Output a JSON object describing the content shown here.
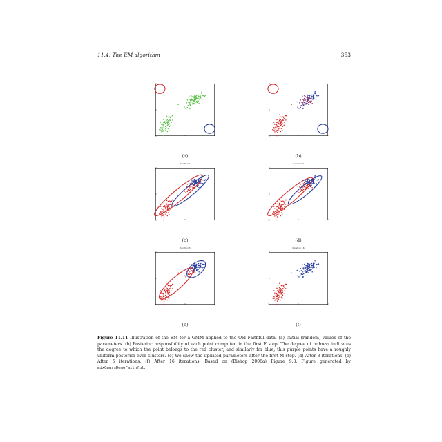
{
  "header": {
    "section": "11.4.   The EM algorithm",
    "page_number": "353"
  },
  "figure": {
    "caption_label": "Figure 11.11",
    "caption_text": "  Illustration of the EM for a GMM applied to the Old Faithful data. (a) Initial (random) values of the parameters. (b) Posterior responsibility of each point computed in the first E step. The degree of redness indicates the degree to which the point belongs to the red cluster, and similarly for blue; this purple points have a roughly uniform posterior over clusters. (c) We show the updated parameters after the first M step. (d) After 3 iterations. (e) After 5 iterations. (f) After 16 iterations. Based on (Bishop 2006a) Figure 9.8. Figure generated by ",
    "caption_code": "mixGaussDemoFaithful",
    "caption_end": ".",
    "panels": [
      {
        "label": "(a)",
        "title": ""
      },
      {
        "label": "(b)",
        "title": ""
      },
      {
        "label": "(c)",
        "title": "iteration 1"
      },
      {
        "label": "(d)",
        "title": "iteration 3"
      },
      {
        "label": "(e)",
        "title": "iteration 5"
      },
      {
        "label": "(f)",
        "title": "iteration 16"
      }
    ]
  },
  "colors": {
    "red": "#d42a2a",
    "blue": "#2a3f9e",
    "green": "#5cc04a",
    "purple": "#7a3a8a"
  },
  "chart_data": [
    {
      "type": "scatter",
      "panel": "a",
      "xlim": [
        -2,
        2
      ],
      "ylim": [
        -2,
        2
      ],
      "series": [
        {
          "color": "green",
          "clusters": [
            {
              "x": -1.25,
              "y": -1.1,
              "n": 70
            },
            {
              "x": 0.7,
              "y": 0.75,
              "n": 110
            }
          ]
        }
      ],
      "ellipses": [
        {
          "color": "red",
          "cx": -1.7,
          "cy": 1.6,
          "rx": 0.35,
          "ry": 0.35,
          "angle": 0
        },
        {
          "color": "blue",
          "cx": 1.65,
          "cy": -1.45,
          "rx": 0.35,
          "ry": 0.35,
          "angle": 0
        }
      ]
    },
    {
      "type": "scatter",
      "panel": "b",
      "xlim": [
        -2,
        2
      ],
      "ylim": [
        -2,
        2
      ],
      "series": [
        {
          "color": "red",
          "region": "upper-left"
        },
        {
          "color": "blue",
          "region": "lower-right"
        },
        {
          "color": "purple",
          "region": "diagonal"
        }
      ],
      "ellipses": [
        {
          "color": "red",
          "cx": -1.7,
          "cy": 1.6,
          "rx": 0.35,
          "ry": 0.35,
          "angle": 0
        },
        {
          "color": "blue",
          "cx": 1.65,
          "cy": -1.45,
          "rx": 0.35,
          "ry": 0.35,
          "angle": 0
        }
      ]
    },
    {
      "type": "scatter",
      "panel": "c",
      "xlim": [
        -2,
        2
      ],
      "ylim": [
        -2,
        2
      ],
      "ellipses": [
        {
          "color": "red",
          "cx": -0.45,
          "cy": -0.1,
          "rx": 2.1,
          "ry": 0.42,
          "angle": 40
        },
        {
          "color": "blue",
          "cx": 0.35,
          "cy": 0.25,
          "rx": 1.6,
          "ry": 0.35,
          "angle": 40
        }
      ]
    },
    {
      "type": "scatter",
      "panel": "d",
      "xlim": [
        -2,
        2
      ],
      "ylim": [
        -2,
        2
      ],
      "ellipses": [
        {
          "color": "red",
          "cx": -0.55,
          "cy": -0.2,
          "rx": 1.95,
          "ry": 0.42,
          "angle": 40
        },
        {
          "color": "blue",
          "cx": 0.45,
          "cy": 0.3,
          "rx": 1.45,
          "ry": 0.35,
          "angle": 40
        }
      ]
    },
    {
      "type": "scatter",
      "panel": "e",
      "xlim": [
        -2,
        2
      ],
      "ylim": [
        -2,
        2
      ],
      "ellipses": [
        {
          "color": "red",
          "cx": -0.6,
          "cy": -0.4,
          "rx": 1.5,
          "ry": 0.45,
          "angle": 42
        },
        {
          "color": "blue",
          "cx": 0.75,
          "cy": 0.7,
          "rx": 0.75,
          "ry": 0.45,
          "angle": 40
        }
      ]
    },
    {
      "type": "scatter",
      "panel": "f",
      "xlim": [
        -2,
        2
      ],
      "ylim": [
        -2,
        2
      ],
      "ellipses": []
    }
  ]
}
